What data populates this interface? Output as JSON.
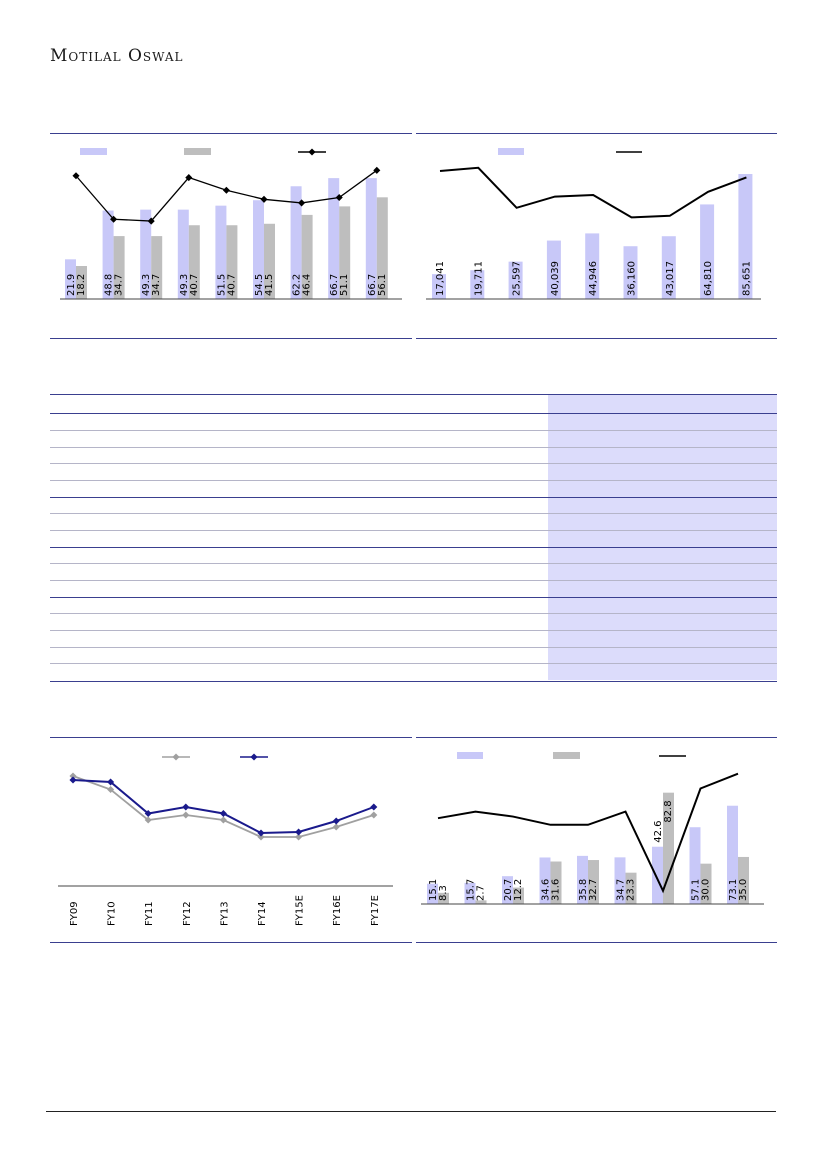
{
  "header": {
    "logo_text": "Motilal Oswal"
  },
  "colors": {
    "accent": "#3a3f8f",
    "bar_primary": "#c8c8f8",
    "bar_secondary": "#bebebe",
    "line": "#000000",
    "line_navy": "#1a1a8c",
    "line_grey": "#a0a0a0",
    "table_shade": "#dcdcfb"
  },
  "chart_data": [
    {
      "type": "bar",
      "series": [
        {
          "values": [
            21.9,
            48.8,
            49.3,
            49.3,
            51.5,
            54.5,
            62.2,
            66.7,
            66.7
          ]
        },
        {
          "values": [
            18.2,
            34.7,
            34.7,
            40.7,
            40.7,
            41.5,
            46.4,
            51.1,
            56.1
          ]
        },
        {
          "values": [
            68,
            44,
            43,
            67,
            60,
            55,
            53,
            56,
            71
          ]
        }
      ],
      "ylim": [
        0,
        80
      ]
    },
    {
      "type": "bar",
      "series": [
        {
          "values": [
            17041,
            19711,
            25597,
            40039,
            44946,
            36160,
            43017,
            64810,
            85651
          ]
        },
        {
          "values": [
            80,
            82,
            57,
            64,
            65,
            51,
            52,
            67,
            76
          ]
        }
      ]
    },
    {
      "type": "line",
      "categories": [
        "FY09",
        "FY10",
        "FY11",
        "FY12",
        "FY13",
        "FY14",
        "FY15E",
        "FY16E",
        "FY17E"
      ],
      "series": [
        {
          "values": [
            22.0,
            19.3,
            13.2,
            14.2,
            13.2,
            9.8,
            9.8,
            11.8,
            14.2
          ]
        },
        {
          "values": [
            21.2,
            20.8,
            14.5,
            15.8,
            14.5,
            10.6,
            10.8,
            13.0,
            15.8
          ]
        }
      ]
    },
    {
      "type": "bar",
      "series": [
        {
          "values": [
            15.1,
            15.7,
            20.7,
            34.6,
            35.8,
            34.7,
            42.6,
            57.1,
            73.1
          ]
        },
        {
          "values": [
            8.3,
            2.7,
            12.2,
            31.6,
            32.7,
            23.3,
            82.8,
            30.0,
            35.0
          ]
        },
        {
          "values": [
            52,
            56,
            53,
            48,
            48,
            56,
            8,
            70,
            79
          ]
        }
      ]
    }
  ]
}
